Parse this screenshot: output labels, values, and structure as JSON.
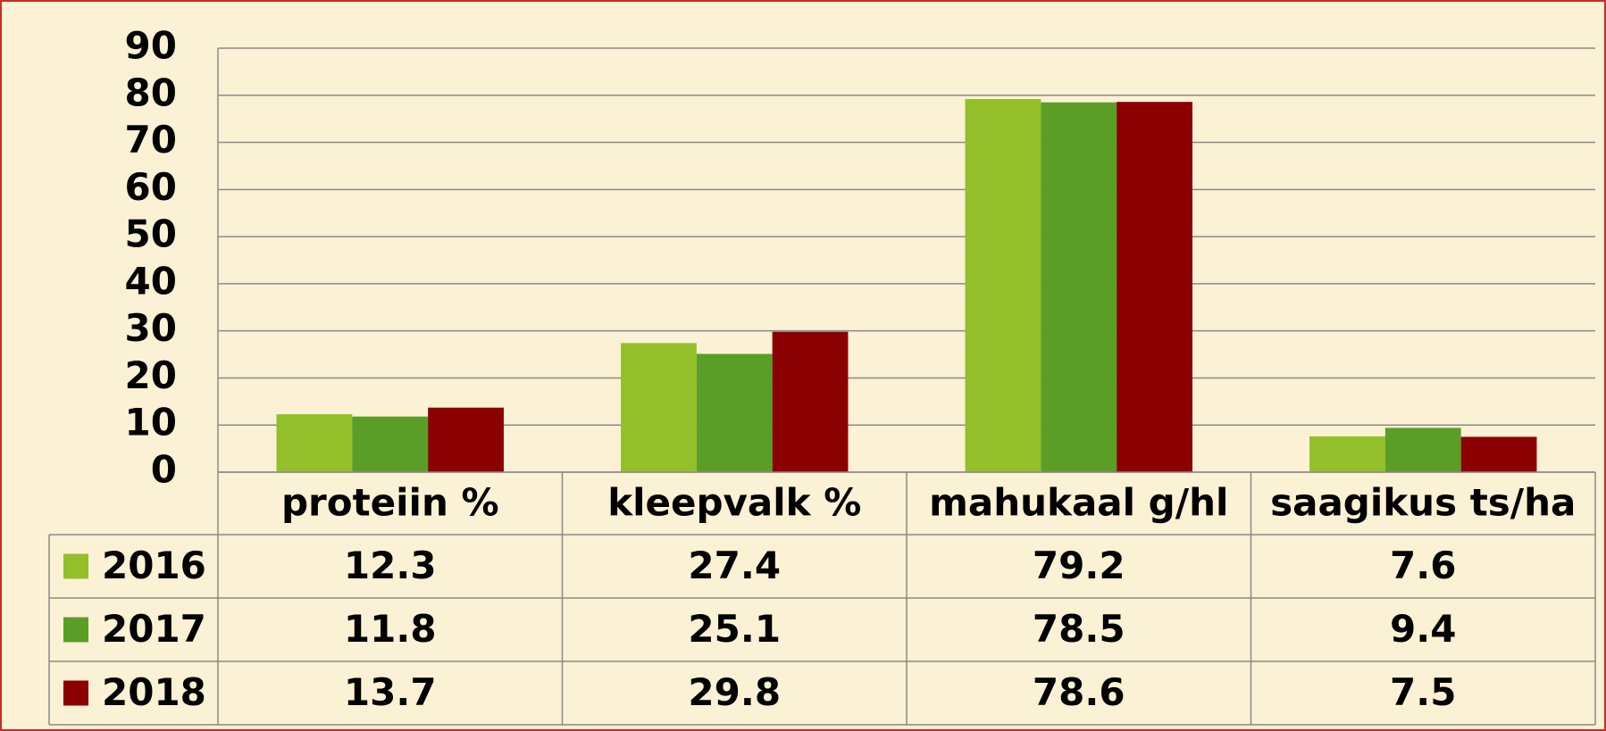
{
  "chart_data": {
    "type": "bar",
    "categories": [
      "proteiin %",
      "kleepvalk %",
      "mahukaal g/hl",
      "saagikus ts/ha"
    ],
    "series": [
      {
        "name": "2016",
        "color": "#93c02a",
        "values": [
          12.3,
          27.4,
          79.2,
          7.6
        ]
      },
      {
        "name": "2017",
        "color": "#5a9e27",
        "values": [
          11.8,
          25.1,
          78.5,
          9.4
        ]
      },
      {
        "name": "2018",
        "color": "#8b0000",
        "values": [
          13.7,
          29.8,
          78.6,
          7.5
        ]
      }
    ],
    "ylim": [
      0,
      90
    ],
    "yticks": [
      0,
      10,
      20,
      30,
      40,
      50,
      60,
      70,
      80,
      90
    ],
    "grid": true
  }
}
